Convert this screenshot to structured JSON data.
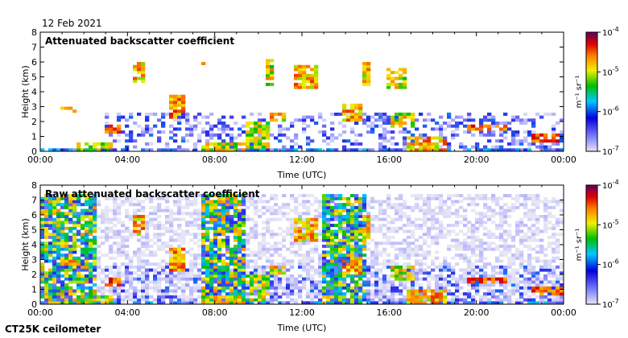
{
  "header": {
    "date": "12 Feb 2021"
  },
  "footer": {
    "instrument": "CT25K ceilometer"
  },
  "chart_data": [
    {
      "type": "heatmap",
      "title": "Attenuated backscatter coefficient",
      "xlabel": "Time (UTC)",
      "ylabel": "Height (km)",
      "xlim": [
        0,
        24
      ],
      "ylim": [
        0,
        8
      ],
      "x_ticks": [
        0,
        4,
        8,
        12,
        16,
        20,
        24
      ],
      "x_tick_labels": [
        "00:00",
        "04:00",
        "08:00",
        "12:00",
        "16:00",
        "20:00",
        "00:00"
      ],
      "y_ticks": [
        0,
        1,
        2,
        3,
        4,
        5,
        6,
        7,
        8
      ],
      "y_tick_labels": [
        "0",
        "1",
        "2",
        "3",
        "4",
        "5",
        "6",
        "7",
        "8"
      ],
      "colorbar": {
        "label": "m⁻¹ sr⁻¹",
        "scale": "log",
        "range": [
          1e-07,
          0.0001
        ],
        "tick_bases": [
          "10",
          "10",
          "10",
          "10"
        ],
        "tick_exponents": [
          "-4",
          "-5",
          "-6",
          "-7"
        ],
        "tick_values": [
          0.0001,
          1e-05,
          1e-06,
          1e-07
        ]
      },
      "background_noise": false,
      "layers": [
        {
          "type": "surface",
          "t0": 0.0,
          "t1": 24.0,
          "h0": 0.0,
          "h1": 0.2,
          "v": -6.4
        },
        {
          "type": "surface",
          "t0": 1.6,
          "t1": 3.4,
          "h0": 0.0,
          "h1": 0.6,
          "v": -5.6
        },
        {
          "type": "surface",
          "t0": 7.3,
          "t1": 9.5,
          "h0": 0.0,
          "h1": 0.6,
          "v": -5.5
        },
        {
          "type": "surface",
          "t0": 16.8,
          "t1": 18.6,
          "h0": 0.0,
          "h1": 0.9,
          "v": -5.3
        },
        {
          "type": "surface",
          "t0": 9.5,
          "t1": 10.5,
          "h0": 0.2,
          "h1": 2.0,
          "v": -5.6
        },
        {
          "type": "cloud",
          "t0": 2.9,
          "t1": 3.7,
          "h0": 1.3,
          "h1": 1.9,
          "v": -5.0
        },
        {
          "type": "cloud",
          "t0": 1.0,
          "t1": 1.6,
          "h0": 2.7,
          "h1": 3.0,
          "v": -5.2
        },
        {
          "type": "cloud",
          "t0": 4.3,
          "t1": 4.8,
          "h0": 4.6,
          "h1": 6.0,
          "v": -5.3
        },
        {
          "type": "cloud",
          "t0": 5.9,
          "t1": 6.7,
          "h0": 2.3,
          "h1": 3.7,
          "v": -5.2
        },
        {
          "type": "cloud",
          "t0": 7.3,
          "t1": 7.6,
          "h0": 5.8,
          "h1": 6.5,
          "v": -5.4
        },
        {
          "type": "cloud",
          "t0": 10.3,
          "t1": 10.7,
          "h0": 4.5,
          "h1": 6.3,
          "v": -5.5
        },
        {
          "type": "cloud",
          "t0": 11.7,
          "t1": 12.8,
          "h0": 4.2,
          "h1": 5.8,
          "v": -5.3
        },
        {
          "type": "cloud",
          "t0": 10.6,
          "t1": 11.3,
          "h0": 2.0,
          "h1": 2.6,
          "v": -5.4
        },
        {
          "type": "cloud",
          "t0": 13.8,
          "t1": 14.8,
          "h0": 2.0,
          "h1": 3.2,
          "v": -5.3
        },
        {
          "type": "cloud",
          "t0": 14.8,
          "t1": 15.2,
          "h0": 4.5,
          "h1": 6.0,
          "v": -5.4
        },
        {
          "type": "cloud",
          "t0": 15.8,
          "t1": 16.8,
          "h0": 4.2,
          "h1": 5.5,
          "v": -5.5
        },
        {
          "type": "cloud",
          "t0": 16.0,
          "t1": 17.2,
          "h0": 1.7,
          "h1": 2.6,
          "v": -5.5
        },
        {
          "type": "cloud",
          "t0": 19.5,
          "t1": 21.5,
          "h0": 1.4,
          "h1": 1.9,
          "v": -5.0
        },
        {
          "type": "cloud",
          "t0": 22.5,
          "t1": 24.0,
          "h0": 0.7,
          "h1": 1.1,
          "v": -5.0
        },
        {
          "type": "aerosol",
          "t0": 3.0,
          "t1": 24.0,
          "h0": 0.2,
          "h1": 2.6,
          "v": -6.6
        }
      ]
    },
    {
      "type": "heatmap",
      "title": "Raw attenuated backscatter coefficient",
      "xlabel": "Time (UTC)",
      "ylabel": "Height (km)",
      "xlim": [
        0,
        24
      ],
      "ylim": [
        0,
        8
      ],
      "x_ticks": [
        0,
        4,
        8,
        12,
        16,
        20,
        24
      ],
      "x_tick_labels": [
        "00:00",
        "04:00",
        "08:00",
        "12:00",
        "16:00",
        "20:00",
        "00:00"
      ],
      "y_ticks": [
        0,
        1,
        2,
        3,
        4,
        5,
        6,
        7,
        8
      ],
      "y_tick_labels": [
        "0",
        "1",
        "2",
        "3",
        "4",
        "5",
        "6",
        "7",
        "8"
      ],
      "colorbar": {
        "label": "m⁻¹ sr⁻¹",
        "scale": "log",
        "range": [
          1e-07,
          0.0001
        ],
        "tick_bases": [
          "10",
          "10",
          "10",
          "10"
        ],
        "tick_exponents": [
          "-4",
          "-5",
          "-6",
          "-7"
        ],
        "tick_values": [
          0.0001,
          1e-05,
          1e-06,
          1e-07
        ]
      },
      "background_noise": true,
      "noise_top_km": 7.5,
      "noise_blocks": [
        {
          "t0": 0.0,
          "t1": 2.6,
          "v": -5.9
        },
        {
          "t0": 7.3,
          "t1": 9.5,
          "v": -5.9
        },
        {
          "t0": 13.0,
          "t1": 14.9,
          "v": -6.0
        }
      ],
      "layers": [
        {
          "type": "surface",
          "t0": 0.0,
          "t1": 24.0,
          "h0": 0.0,
          "h1": 0.2,
          "v": -6.4
        },
        {
          "type": "surface",
          "t0": 1.6,
          "t1": 3.4,
          "h0": 0.0,
          "h1": 0.6,
          "v": -5.6
        },
        {
          "type": "surface",
          "t0": 7.3,
          "t1": 9.5,
          "h0": 0.0,
          "h1": 0.6,
          "v": -5.5
        },
        {
          "type": "surface",
          "t0": 16.8,
          "t1": 18.6,
          "h0": 0.0,
          "h1": 0.9,
          "v": -5.3
        },
        {
          "type": "surface",
          "t0": 9.5,
          "t1": 10.5,
          "h0": 0.2,
          "h1": 2.0,
          "v": -5.6
        },
        {
          "type": "cloud",
          "t0": 2.9,
          "t1": 3.7,
          "h0": 1.3,
          "h1": 1.9,
          "v": -5.0
        },
        {
          "type": "cloud",
          "t0": 1.0,
          "t1": 1.6,
          "h0": 2.7,
          "h1": 3.0,
          "v": -5.2
        },
        {
          "type": "cloud",
          "t0": 4.3,
          "t1": 4.8,
          "h0": 4.6,
          "h1": 6.0,
          "v": -5.3
        },
        {
          "type": "cloud",
          "t0": 5.9,
          "t1": 6.7,
          "h0": 2.3,
          "h1": 3.7,
          "v": -5.2
        },
        {
          "type": "cloud",
          "t0": 11.7,
          "t1": 12.8,
          "h0": 4.2,
          "h1": 5.8,
          "v": -5.3
        },
        {
          "type": "cloud",
          "t0": 10.6,
          "t1": 11.3,
          "h0": 2.0,
          "h1": 2.6,
          "v": -5.4
        },
        {
          "type": "cloud",
          "t0": 13.8,
          "t1": 14.8,
          "h0": 2.0,
          "h1": 3.2,
          "v": -5.3
        },
        {
          "type": "cloud",
          "t0": 14.8,
          "t1": 15.2,
          "h0": 4.5,
          "h1": 6.0,
          "v": -5.4
        },
        {
          "type": "cloud",
          "t0": 16.0,
          "t1": 17.2,
          "h0": 1.7,
          "h1": 2.6,
          "v": -5.5
        },
        {
          "type": "cloud",
          "t0": 19.5,
          "t1": 21.5,
          "h0": 1.4,
          "h1": 1.9,
          "v": -5.0
        },
        {
          "type": "cloud",
          "t0": 22.5,
          "t1": 24.0,
          "h0": 0.7,
          "h1": 1.1,
          "v": -5.0
        },
        {
          "type": "aerosol",
          "t0": 3.0,
          "t1": 24.0,
          "h0": 0.2,
          "h1": 2.6,
          "v": -6.6
        }
      ]
    }
  ]
}
